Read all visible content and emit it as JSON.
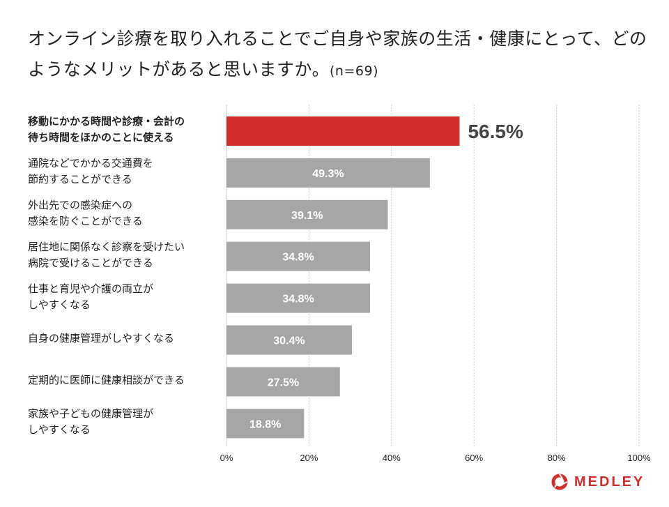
{
  "chart_data": {
    "type": "bar",
    "orientation": "horizontal",
    "title": "オンライン診療を取り入れることでご自身や家族の生活・健康にとって、どのようなメリットがあると思いますか。",
    "sample_note": "(n=69)",
    "categories": [
      [
        "移動にかかる時間や診療・会計の",
        "待ち時間をほかのことに使える"
      ],
      [
        "通院などでかかる交通費を",
        "節約することができる"
      ],
      [
        "外出先での感染症への",
        "感染を防ぐことができる"
      ],
      [
        "居住地に関係なく診察を受けたい",
        "病院で受けることができる"
      ],
      [
        "仕事と育児や介護の両立が",
        "しやすくなる"
      ],
      [
        "自身の健康管理がしやすくなる"
      ],
      [
        "定期的に医師に健康相談ができる"
      ],
      [
        "家族や子どもの健康管理が",
        "しやすくなる"
      ]
    ],
    "values": [
      56.5,
      49.3,
      39.1,
      34.8,
      34.8,
      30.4,
      27.5,
      18.8
    ],
    "value_labels": [
      "56.5%",
      "49.3%",
      "39.1%",
      "34.8%",
      "34.8%",
      "30.4%",
      "27.5%",
      "18.8%"
    ],
    "highlight_index": 0,
    "xlim": [
      0,
      100
    ],
    "xticks": [
      0,
      20,
      40,
      60,
      80,
      100
    ],
    "xtick_labels": [
      "0%",
      "20%",
      "40%",
      "60%",
      "80%",
      "100%"
    ],
    "grid": true,
    "colors": {
      "highlight": "#d22f2c",
      "bar": "#a6a6a6",
      "grid": "#cccccc",
      "highlight_label": "#444444",
      "bar_label": "#ffffff"
    }
  },
  "brand": {
    "name": "MEDLEY",
    "color": "#d22f2c"
  }
}
